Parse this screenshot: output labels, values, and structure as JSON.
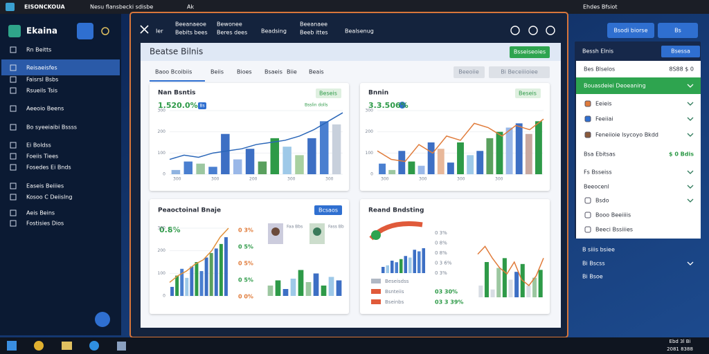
{
  "browser": {
    "tabs": [
      "EISONCKOUA",
      "Nesu flansbecki sdisbe",
      "Ak"
    ],
    "status": "Ehdes Bfsiot"
  },
  "sidebar": {
    "brand": "Ekaina",
    "items": [
      "Rn Beitts",
      "Reisaeisfes",
      "Faisrsl Bsbs",
      "Rsueils Tsis",
      "Aeeoio Beens",
      "Bo syeeiaibi Bssss",
      "Ei Boldss",
      "Foeiis Tiees",
      "Fosedes Ei Bnds",
      "Easeis Beiiies",
      "Kosoo C Deiislng",
      "Aeis Beins",
      "Fostisies Dios"
    ]
  },
  "modal": {
    "tabs": [
      [
        "Ier"
      ],
      [
        "Beeanaeoe",
        "Bebits bees"
      ],
      [
        "Bewonee",
        "Beres dees"
      ],
      [
        "Beadsing"
      ],
      [
        "Beeanaee",
        "Beeb ittes"
      ],
      [
        "Bealsenug"
      ]
    ]
  },
  "panel": {
    "title": "Beatse Bilnis",
    "button": "Bsseiseoies",
    "subtabs": [
      "Baoo Bcoibiis",
      "Beiis",
      "Bioes",
      "Bsaeis",
      "Biie",
      "Beais"
    ],
    "actions": [
      "Beeoiie",
      "Bi Beceiiioiee"
    ]
  },
  "cards": [
    {
      "title": "Nan Bsntis",
      "button": "Beseis",
      "kpi": "1.520.0%",
      "badge": "Bs",
      "legend": "Bsslin dolls",
      "xlabels": [
        "300",
        "300",
        "200",
        "300",
        "300"
      ]
    },
    {
      "title": "Bnnin",
      "button": "Beseis",
      "kpi": "3.3.506%",
      "xlabels": [
        "300",
        "300",
        "300",
        "300"
      ]
    },
    {
      "title": "Peaoctoinal Bnaje",
      "button": "Bcsaos",
      "kpi": "0.8%",
      "stats": [
        "0 3%",
        "0 5%",
        "0 5%",
        "0 5%",
        "0 0%"
      ],
      "people": [
        "Faa Bbs",
        "Fass Bb"
      ]
    },
    {
      "title": "Reand Bndsting",
      "stats": [
        "0 3%",
        "0 8%",
        "0 8%",
        "0 3 6%",
        "0 3%"
      ],
      "legend": [
        "Beseisdss",
        "Bsnteiis",
        "Bseinbs"
      ],
      "legend_values": [
        "03 30%",
        "03 3 39%"
      ]
    }
  ],
  "charts": [
    {
      "ylim": [
        0,
        300
      ],
      "yticks": [
        0,
        100,
        200,
        300
      ],
      "bars": [
        20,
        60,
        50,
        35,
        190,
        70,
        120,
        60,
        170,
        130,
        90,
        170,
        250,
        235
      ],
      "colors": [
        "#8fb3e0",
        "#4a7fd0",
        "#9cc7a0",
        "#4a7fd0",
        "#3d6fc4",
        "#9ab8e8",
        "#3d6fc4",
        "#5aa05e",
        "#2e9a48",
        "#9ec9e8",
        "#a8d0a0",
        "#3d6fc4",
        "#4a7fd0",
        "#c8d0dc"
      ],
      "line": [
        70,
        90,
        80,
        100,
        110,
        120,
        140,
        150,
        160,
        180,
        210,
        250,
        290
      ],
      "line_color": "#2a66b8"
    },
    {
      "ylim": [
        0,
        300
      ],
      "yticks": [
        0,
        100,
        200,
        300
      ],
      "bars": [
        50,
        20,
        110,
        60,
        40,
        150,
        120,
        55,
        150,
        90,
        110,
        170,
        200,
        220,
        240,
        190,
        250
      ],
      "colors": [
        "#4a7fd0",
        "#9cc7a0",
        "#3d6fc4",
        "#2e9a48",
        "#9ab8e8",
        "#3d6fc4",
        "#e8b89a",
        "#3d6fc4",
        "#2e9a48",
        "#9ec9e8",
        "#3d6fc4",
        "#5aa05e",
        "#2e9a48",
        "#9ab8e8",
        "#3d6fc4",
        "#c8a8a0",
        "#2e9a48"
      ],
      "line": [
        110,
        70,
        60,
        140,
        100,
        180,
        160,
        240,
        220,
        180,
        230,
        210,
        260
      ],
      "line_color": "#e07b3a"
    },
    {
      "ylim": [
        0,
        300
      ],
      "yticks": [
        0,
        100,
        200,
        300
      ],
      "bars": [
        40,
        90,
        120,
        80,
        130,
        150,
        110,
        170,
        190,
        210,
        230,
        260
      ],
      "colors": [
        "#3d6fc4",
        "#2e9a48",
        "#4a7fd0",
        "#9ec9e8",
        "#3d6fc4",
        "#2e9a48",
        "#4a7fd0",
        "#3d6fc4",
        "#5aa05e",
        "#3d6fc4",
        "#2e9a48",
        "#3d6fc4"
      ],
      "line": [
        60,
        90,
        110,
        140,
        160,
        200,
        260,
        300
      ],
      "line_color": "#e0903a"
    },
    {
      "ylim": [
        0,
        200
      ],
      "bars": [
        60,
        90,
        40,
        100,
        150,
        80,
        130,
        60,
        110,
        90
      ],
      "colors": [
        "#9cc7a0",
        "#2e9a48",
        "#3d6fc4",
        "#9ec9e8",
        "#2e9a48",
        "#9cc7a0",
        "#3d6fc4",
        "#2e9a48",
        "#9ec9e8",
        "#3d6fc4"
      ]
    },
    {
      "ylim": [
        0,
        200
      ],
      "bars": [
        40,
        50,
        80,
        70,
        90,
        110,
        100,
        150,
        140,
        160
      ],
      "colors": [
        "#3d6fc4",
        "#9ec9e8",
        "#3d6fc4",
        "#4a7fd0",
        "#2e9a48",
        "#3d6fc4",
        "#9ec9e8",
        "#3d6fc4",
        "#4a7fd0",
        "#3d6fc4"
      ]
    },
    {
      "ylim": [
        0,
        300
      ],
      "bars": [
        60,
        180,
        40,
        150,
        200,
        90,
        130,
        170,
        60,
        100,
        140
      ],
      "colors": [
        "#d8dde4",
        "#2e9a48",
        "#d8dde4",
        "#9cc7a0",
        "#2e9a48",
        "#d8dde4",
        "#3d6fc4",
        "#2e9a48",
        "#d8dde4",
        "#9cc7a0",
        "#2e9a48"
      ],
      "line": [
        220,
        260,
        200,
        150,
        120,
        180,
        90,
        60,
        110,
        200
      ],
      "line_color": "#e07b3a"
    }
  ],
  "right": {
    "top_buttons": [
      "Bsodi biorse",
      "Bs"
    ],
    "title": "Bessh Elnis",
    "button": "Bsessa",
    "rows": [
      "Bes Blselos",
      "Bouasdeiei Deoeaning",
      "Eeieis",
      "Feeiiai",
      "Feneiioie lsycoyo Bkdd",
      "Bsa Ebitsas",
      "Fs Bsseiss",
      "Beeocenl",
      "Bsdo",
      "Booo Beeiiiis",
      "Beeci Bssiiies"
    ],
    "row_values": [
      "8S88 $ 0",
      "$ 0 Bdis"
    ],
    "outside": [
      "B siiis bsiee",
      "Bi Bscss",
      "Bi Bsoe"
    ]
  },
  "taskbar": {
    "clock": [
      "Ebd 3l Bi",
      "2081 8388"
    ]
  }
}
